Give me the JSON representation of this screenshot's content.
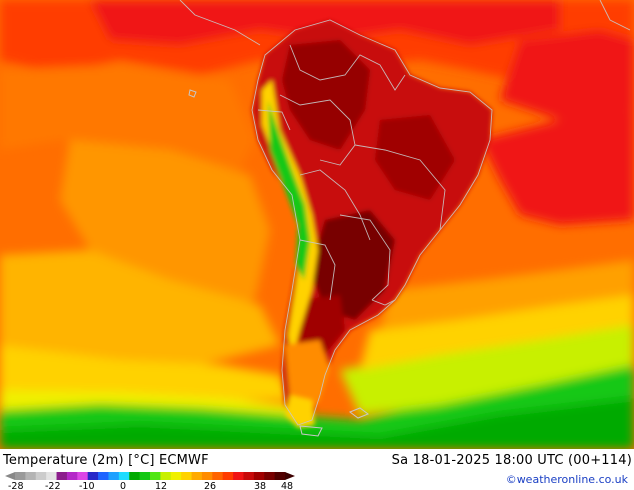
{
  "title": "Temperature (2m) [°C] ECMWF",
  "timestamp": "Sa 18-01-2025 18:00 UTC (00+114)",
  "credit": "©weatheronline.co.uk",
  "colorbar": {
    "tick_labels": [
      "-28",
      "-22",
      "-10",
      "0",
      "12",
      "26",
      "38",
      "48"
    ],
    "colors": [
      "#9a9a9a",
      "#b4b4b4",
      "#cccccc",
      "#e4e4e4",
      "#8c1e8c",
      "#b428c8",
      "#dc46e6",
      "#2828c8",
      "#1e64ff",
      "#1ea0ff",
      "#1edcff",
      "#00aa00",
      "#14c814",
      "#50e614",
      "#c8f000",
      "#f0f000",
      "#ffd200",
      "#ffaa00",
      "#ff8c00",
      "#ff6400",
      "#ff3c00",
      "#f01414",
      "#c80a0a",
      "#a00000",
      "#780000",
      "#500000"
    ]
  },
  "legend_colors": {
    "ocean_warm": "#ff6400",
    "ocean_mid": "#ff9600",
    "ocean_cool": "#ffc800",
    "cold": "#f0f000",
    "coldest": "#14c814",
    "land_hot": "#c80a0a",
    "land_very_hot": "#960000"
  }
}
